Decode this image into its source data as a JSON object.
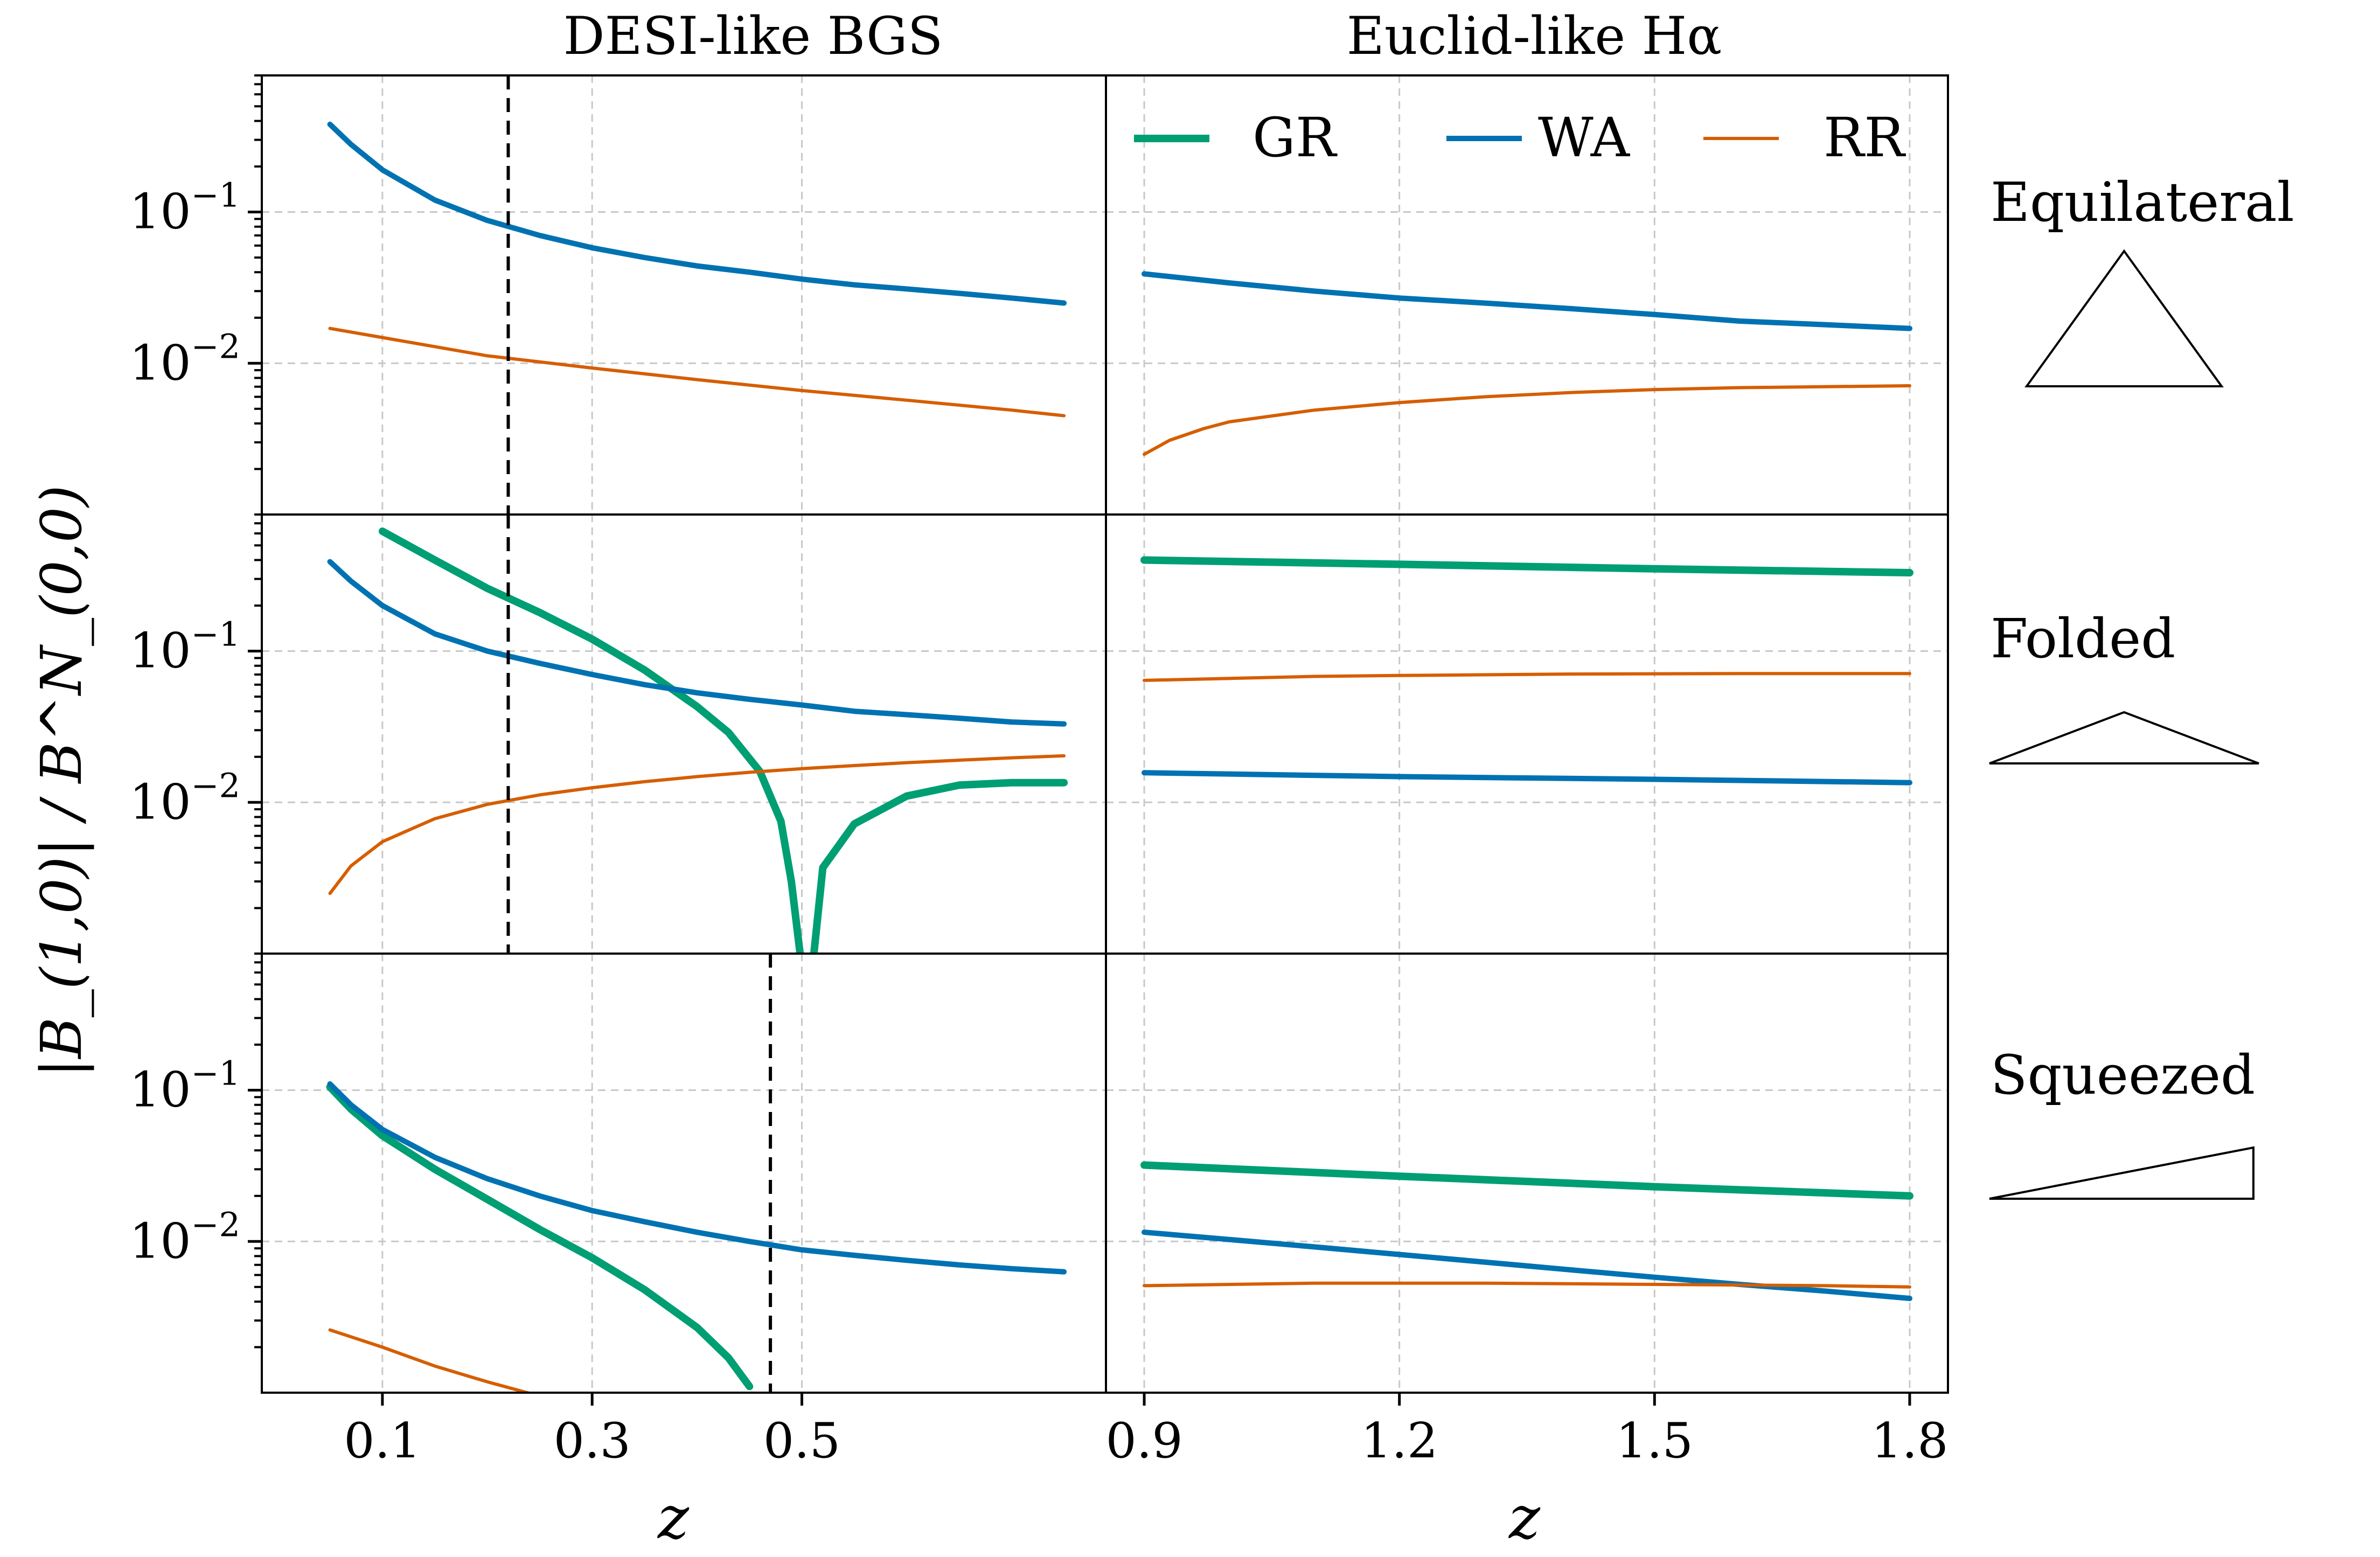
{
  "chart_data": {
    "type": "line",
    "ylabel": "|B_(1,0)| / B^N_(0,0)",
    "xlabel": "z",
    "y_scale": "log",
    "ylim": [
      0.001,
      0.8
    ],
    "grid": true,
    "legend": {
      "placement": "top of right column, first row",
      "entries": [
        "GR",
        "WA",
        "RR"
      ]
    },
    "colors": {
      "GR": "#009e73",
      "WA": "#0072b2",
      "RR": "#d55e00"
    },
    "columns": [
      {
        "title": "DESI-like BGS",
        "xlim": [
          -0.015,
          0.79
        ],
        "xticks": [
          0.1,
          0.3,
          0.5
        ],
        "xtick_labels": [
          "0.1",
          "0.3",
          "0.5"
        ]
      },
      {
        "title": "Euclid-like Hα",
        "xlim": [
          0.855,
          1.845
        ],
        "xticks": [
          0.9,
          1.2,
          1.5,
          1.8
        ],
        "xtick_labels": [
          "0.9",
          "1.2",
          "1.5",
          "1.8"
        ]
      }
    ],
    "rows": [
      {
        "label": "Equilateral",
        "shape_icon": "equilateral-triangle-icon"
      },
      {
        "label": "Folded",
        "shape_icon": "folded-triangle-icon"
      },
      {
        "label": "Squeezed",
        "shape_icon": "squeezed-triangle-icon"
      }
    ],
    "ytick_labels": [
      {
        "value": 0.1,
        "mantissa": "10",
        "exponent": "−1"
      },
      {
        "value": 0.01,
        "mantissa": "10",
        "exponent": "−2"
      }
    ],
    "panels": [
      {
        "row": 0,
        "col": 0,
        "vline": 0.22,
        "series": [
          {
            "name": "WA",
            "x": [
              0.05,
              0.07,
              0.1,
              0.15,
              0.2,
              0.25,
              0.3,
              0.35,
              0.4,
              0.45,
              0.5,
              0.55,
              0.6,
              0.65,
              0.7,
              0.75
            ],
            "y": [
              0.38,
              0.28,
              0.19,
              0.12,
              0.088,
              0.07,
              0.058,
              0.05,
              0.044,
              0.04,
              0.036,
              0.033,
              0.031,
              0.029,
              0.027,
              0.025
            ]
          },
          {
            "name": "RR",
            "x": [
              0.05,
              0.1,
              0.2,
              0.3,
              0.4,
              0.5,
              0.6,
              0.7,
              0.75
            ],
            "y": [
              0.017,
              0.0148,
              0.0112,
              0.0093,
              0.0078,
              0.0066,
              0.0057,
              0.0049,
              0.0045
            ]
          }
        ]
      },
      {
        "row": 0,
        "col": 1,
        "series": [
          {
            "name": "WA",
            "x": [
              0.9,
              1.0,
              1.1,
              1.2,
              1.3,
              1.4,
              1.5,
              1.6,
              1.7,
              1.8
            ],
            "y": [
              0.039,
              0.034,
              0.03,
              0.027,
              0.025,
              0.023,
              0.021,
              0.019,
              0.018,
              0.017
            ]
          },
          {
            "name": "RR",
            "x": [
              0.9,
              0.93,
              0.97,
              1.0,
              1.1,
              1.2,
              1.3,
              1.4,
              1.5,
              1.6,
              1.7,
              1.8
            ],
            "y": [
              0.0025,
              0.0031,
              0.0037,
              0.0041,
              0.0049,
              0.0055,
              0.006,
              0.0064,
              0.0067,
              0.0069,
              0.007,
              0.0071
            ]
          }
        ]
      },
      {
        "row": 1,
        "col": 0,
        "vline": 0.22,
        "series": [
          {
            "name": "GR",
            "x": [
              0.1,
              0.15,
              0.2,
              0.25,
              0.3,
              0.35,
              0.4,
              0.43,
              0.46,
              0.48,
              0.49,
              0.5,
              0.51,
              0.52,
              0.55,
              0.6,
              0.65,
              0.7,
              0.75
            ],
            "y": [
              0.62,
              0.4,
              0.26,
              0.18,
              0.12,
              0.075,
              0.043,
              0.029,
              0.016,
              0.0075,
              0.003,
              0.0008,
              0.0008,
              0.0037,
              0.0072,
              0.011,
              0.013,
              0.0135,
              0.0135
            ]
          },
          {
            "name": "WA",
            "x": [
              0.05,
              0.07,
              0.1,
              0.15,
              0.2,
              0.25,
              0.3,
              0.35,
              0.4,
              0.45,
              0.5,
              0.55,
              0.6,
              0.65,
              0.7,
              0.75
            ],
            "y": [
              0.39,
              0.29,
              0.2,
              0.13,
              0.1,
              0.083,
              0.07,
              0.06,
              0.053,
              0.048,
              0.044,
              0.04,
              0.038,
              0.036,
              0.034,
              0.033
            ]
          },
          {
            "name": "RR",
            "x": [
              0.05,
              0.07,
              0.1,
              0.15,
              0.2,
              0.25,
              0.3,
              0.35,
              0.4,
              0.45,
              0.5,
              0.55,
              0.6,
              0.65,
              0.7,
              0.75
            ],
            "y": [
              0.0025,
              0.0038,
              0.0055,
              0.0078,
              0.0097,
              0.0112,
              0.0125,
              0.0137,
              0.0148,
              0.0158,
              0.0167,
              0.0175,
              0.0183,
              0.019,
              0.0197,
              0.0203
            ]
          }
        ]
      },
      {
        "row": 1,
        "col": 1,
        "series": [
          {
            "name": "GR",
            "x": [
              0.9,
              1.2,
              1.5,
              1.8
            ],
            "y": [
              0.4,
              0.375,
              0.35,
              0.33
            ]
          },
          {
            "name": "WA",
            "x": [
              0.9,
              1.2,
              1.5,
              1.8
            ],
            "y": [
              0.0157,
              0.0148,
              0.0142,
              0.0135
            ]
          },
          {
            "name": "RR",
            "x": [
              0.9,
              1.0,
              1.1,
              1.2,
              1.4,
              1.6,
              1.8
            ],
            "y": [
              0.064,
              0.066,
              0.068,
              0.069,
              0.0705,
              0.071,
              0.071
            ]
          }
        ]
      },
      {
        "row": 2,
        "col": 0,
        "vline": 0.47,
        "series": [
          {
            "name": "GR",
            "x": [
              0.05,
              0.07,
              0.1,
              0.15,
              0.2,
              0.25,
              0.3,
              0.35,
              0.4,
              0.43,
              0.45
            ],
            "y": [
              0.105,
              0.075,
              0.05,
              0.03,
              0.019,
              0.012,
              0.0078,
              0.0048,
              0.0027,
              0.0017,
              0.0011
            ]
          },
          {
            "name": "WA",
            "x": [
              0.05,
              0.07,
              0.1,
              0.15,
              0.2,
              0.25,
              0.3,
              0.35,
              0.4,
              0.45,
              0.5,
              0.55,
              0.6,
              0.65,
              0.7,
              0.75
            ],
            "y": [
              0.11,
              0.08,
              0.055,
              0.036,
              0.026,
              0.02,
              0.016,
              0.0135,
              0.0115,
              0.01,
              0.0088,
              0.0081,
              0.0075,
              0.007,
              0.0066,
              0.0063
            ]
          },
          {
            "name": "RR",
            "x": [
              0.05,
              0.1,
              0.15,
              0.2,
              0.25
            ],
            "y": [
              0.0026,
              0.002,
              0.0015,
              0.00118,
              0.00095
            ]
          }
        ]
      },
      {
        "row": 2,
        "col": 1,
        "series": [
          {
            "name": "GR",
            "x": [
              0.9,
              1.2,
              1.5,
              1.8
            ],
            "y": [
              0.032,
              0.027,
              0.023,
              0.02
            ]
          },
          {
            "name": "WA",
            "x": [
              0.9,
              1.0,
              1.1,
              1.2,
              1.3,
              1.4,
              1.5,
              1.6,
              1.7,
              1.8
            ],
            "y": [
              0.0115,
              0.0103,
              0.0092,
              0.0082,
              0.0073,
              0.0065,
              0.0058,
              0.0052,
              0.0047,
              0.0042
            ]
          },
          {
            "name": "RR",
            "x": [
              0.9,
              1.1,
              1.3,
              1.5,
              1.7,
              1.8
            ],
            "y": [
              0.0051,
              0.0053,
              0.0053,
              0.0052,
              0.0051,
              0.005
            ]
          }
        ]
      }
    ]
  }
}
